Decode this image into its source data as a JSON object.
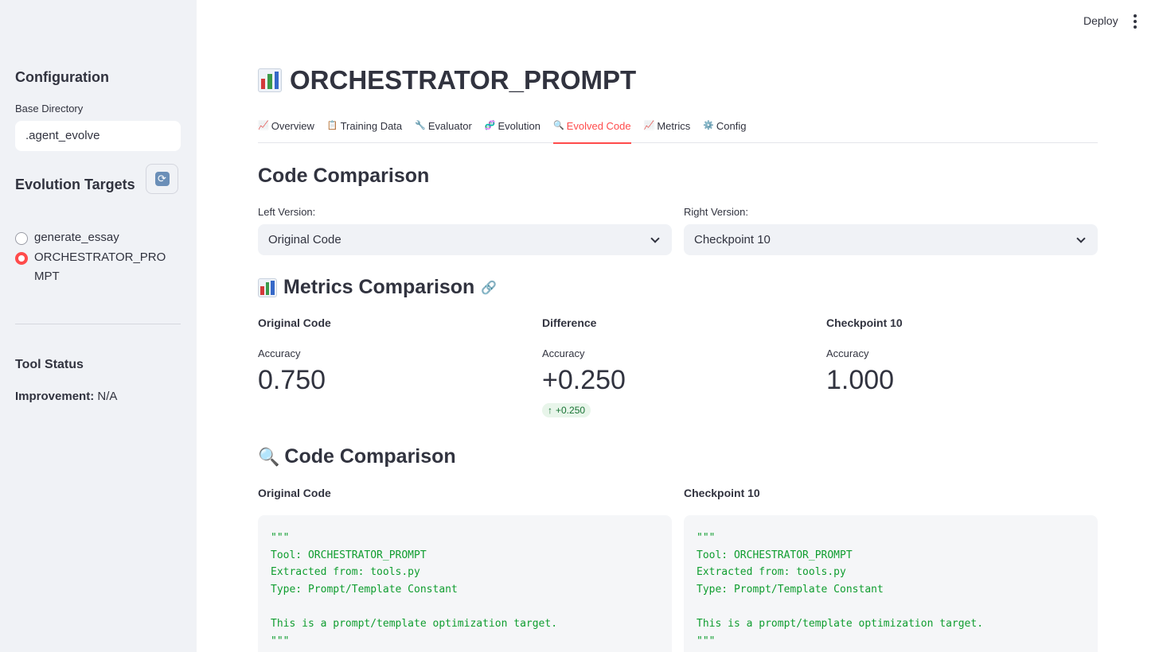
{
  "sidebar": {
    "configuration_heading": "Configuration",
    "base_directory_label": "Base Directory",
    "base_directory_value": ".agent_evolve",
    "evolution_targets_heading": "Evolution Targets",
    "targets": [
      {
        "label": "generate_essay",
        "selected": false
      },
      {
        "label": "ORCHESTRATOR_PROMPT",
        "selected": true
      }
    ],
    "tool_status_heading": "Tool Status",
    "improvement_label": "Improvement:",
    "improvement_value": "N/A"
  },
  "header": {
    "deploy_label": "Deploy"
  },
  "main": {
    "title": "ORCHESTRATOR_PROMPT",
    "tabs": [
      {
        "icon": "📈",
        "label": "Overview"
      },
      {
        "icon": "📋",
        "label": "Training Data"
      },
      {
        "icon": "🔧",
        "label": "Evaluator"
      },
      {
        "icon": "🧬",
        "label": "Evolution"
      },
      {
        "icon": "🔍",
        "label": "Evolved Code",
        "active": true
      },
      {
        "icon": "📈",
        "label": "Metrics"
      },
      {
        "icon": "⚙️",
        "label": "Config"
      }
    ],
    "code_comparison_heading": "Code Comparison",
    "left_version_label": "Left Version:",
    "left_version_value": "Original Code",
    "right_version_label": "Right Version:",
    "right_version_value": "Checkpoint 10",
    "metrics_heading": "Metrics Comparison",
    "metrics": [
      {
        "head": "Original Code",
        "label": "Accuracy",
        "value": "0.750"
      },
      {
        "head": "Difference",
        "label": "Accuracy",
        "value": "+0.250",
        "delta": "+0.250"
      },
      {
        "head": "Checkpoint 10",
        "label": "Accuracy",
        "value": "1.000"
      }
    ],
    "code_heading": "Code Comparison",
    "left_code_title": "Original Code",
    "right_code_title": "Checkpoint 10",
    "left_code": "\"\"\"\nTool: ORCHESTRATOR_PROMPT\nExtracted from: tools.py\nType: Prompt/Template Constant\n\nThis is a prompt/template optimization target.\n\"\"\"",
    "right_code": "\"\"\"\nTool: ORCHESTRATOR_PROMPT\nExtracted from: tools.py\nType: Prompt/Template Constant\n\nThis is a prompt/template optimization target.\n\"\"\""
  },
  "colors": {
    "accent": "#ff4b4b",
    "sidebar_bg": "#f0f2f6",
    "code_green": "#0f9d2f",
    "delta_green": "#177233"
  }
}
